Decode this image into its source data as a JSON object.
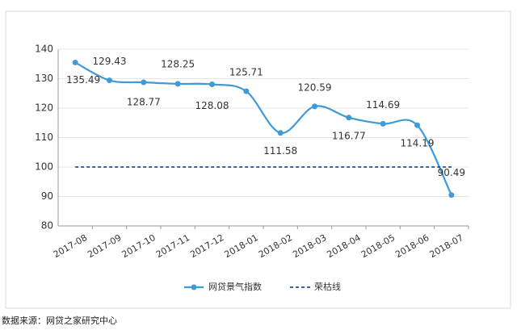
{
  "chart_data": {
    "type": "line",
    "categories": [
      "2017-08",
      "2017-09",
      "2017-10",
      "2017-11",
      "2017-12",
      "2018-01",
      "2018-02",
      "2018-03",
      "2018-04",
      "2018-05",
      "2018-06",
      "2018-07"
    ],
    "series": [
      {
        "name": "网贷景气指数",
        "color": "#3e9ad8",
        "values": [
          135.49,
          129.43,
          128.77,
          128.25,
          128.08,
          125.71,
          111.58,
          120.59,
          116.77,
          114.69,
          114.19,
          90.49
        ]
      },
      {
        "name": "荣枯线",
        "color": "#1f4e9a",
        "values": [
          100,
          100,
          100,
          100,
          100,
          100,
          100,
          100,
          100,
          100,
          100,
          100
        ]
      }
    ],
    "ylim": [
      80,
      140
    ],
    "yticks": [
      80,
      90,
      100,
      110,
      120,
      130,
      140
    ],
    "grid": true,
    "legend": "bottom",
    "source": "数据来源：网贷之家研究中心"
  }
}
